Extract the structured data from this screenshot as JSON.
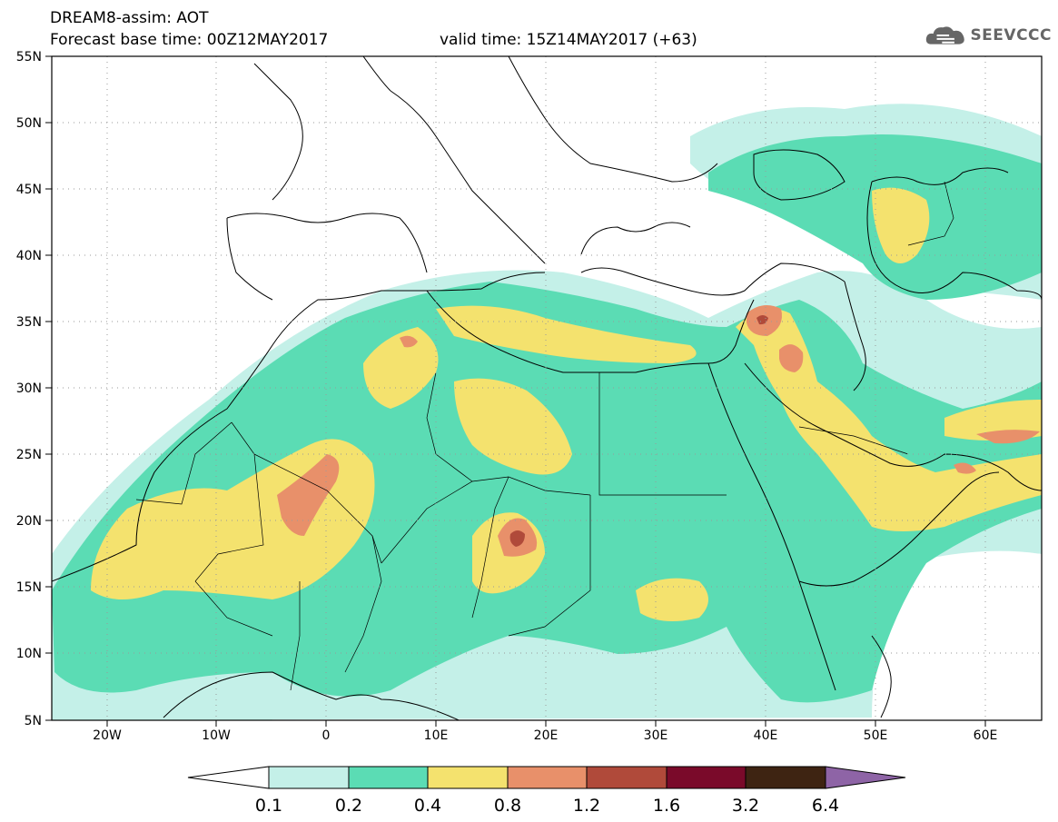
{
  "header": {
    "line1": "DREAM8-assim: AOT",
    "base_time": "Forecast base time: 00Z12MAY2017",
    "valid_time": "valid time: 15Z14MAY2017 (+63)"
  },
  "logo": {
    "text": "SEEVCCC",
    "icon": "cloud-logo-icon"
  },
  "map": {
    "lat_ticks": [
      "55N",
      "50N",
      "45N",
      "40N",
      "35N",
      "30N",
      "25N",
      "20N",
      "15N",
      "10N",
      "5N"
    ],
    "lon_ticks": [
      "20W",
      "10W",
      "0",
      "10E",
      "20E",
      "30E",
      "40E",
      "50E",
      "60E"
    ],
    "lat_range": [
      5,
      55
    ],
    "lon_range": [
      -25,
      65
    ]
  },
  "colorbar": {
    "labels": [
      "0.1",
      "0.2",
      "0.4",
      "0.8",
      "1.2",
      "1.6",
      "3.2",
      "6.4"
    ],
    "colors": [
      "#c4f0e8",
      "#5bdcb4",
      "#f4e26e",
      "#e8906a",
      "#b04a3a",
      "#7a0a2a",
      "#3e2412",
      "#8e64a6"
    ]
  },
  "palette": {
    "level1": "#c4f0e8",
    "level2": "#5bdcb4",
    "level3": "#f4e26e",
    "level4": "#e8906a",
    "level5": "#b04a3a"
  }
}
